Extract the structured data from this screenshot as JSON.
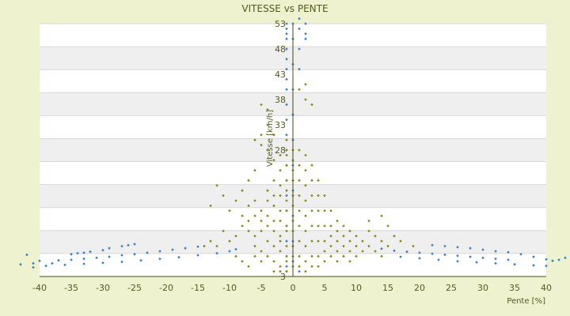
{
  "chart_data": {
    "type": "scatter",
    "title": "VITESSE vs PENTE",
    "xlabel": "Pente [%]",
    "ylabel": "Vitesse [km/h]",
    "xlim": [
      -40,
      40
    ],
    "ylim": [
      3,
      53
    ],
    "x_ticks": [
      "-40",
      "-35",
      "-30",
      "-25",
      "-20",
      "-15",
      "-10",
      "-5",
      "0",
      "5",
      "10",
      "15",
      "20",
      "25",
      "30",
      "35",
      "40"
    ],
    "y_ticks": [
      "53",
      "48",
      "43",
      "38",
      "33",
      "28",
      "3"
    ],
    "grid": true,
    "legend": "none",
    "colors": {
      "series_a": "#3a80c8",
      "series_b": "#8a8a1a",
      "band": "#efefef",
      "axis": "#4a4a14"
    },
    "series": [
      {
        "marker": "blue-diamond",
        "points": [
          [
            -43,
            5.4
          ],
          [
            -42,
            7.3
          ],
          [
            -41,
            4.8
          ],
          [
            -41,
            5.6
          ],
          [
            -40,
            6.1
          ],
          [
            -39,
            5.1
          ],
          [
            -38,
            5.6
          ],
          [
            -37,
            6.2
          ],
          [
            -35,
            7.4
          ],
          [
            -34,
            7.6
          ],
          [
            -33,
            7.7
          ],
          [
            -32,
            7.9
          ],
          [
            -30,
            8.2
          ],
          [
            -29,
            8.6
          ],
          [
            -27,
            9.0
          ],
          [
            -26,
            9.2
          ],
          [
            -25,
            9.4
          ],
          [
            -35,
            6.3
          ],
          [
            -33,
            6.5
          ],
          [
            -31,
            6.7
          ],
          [
            -29,
            6.9
          ],
          [
            -27,
            7.2
          ],
          [
            -25,
            7.4
          ],
          [
            -23,
            7.7
          ],
          [
            -21,
            8.0
          ],
          [
            -19,
            8.3
          ],
          [
            -17,
            8.6
          ],
          [
            -15,
            8.9
          ],
          [
            -36,
            5.3
          ],
          [
            -33,
            5.5
          ],
          [
            -30,
            5.7
          ],
          [
            -27,
            5.9
          ],
          [
            -24,
            6.2
          ],
          [
            -21,
            6.5
          ],
          [
            -18,
            6.8
          ],
          [
            -15,
            7.2
          ],
          [
            -12,
            7.6
          ],
          [
            -10,
            8.0
          ],
          [
            -9,
            8.4
          ],
          [
            -1,
            53
          ],
          [
            -1,
            52
          ],
          [
            -1,
            51
          ],
          [
            -1,
            50
          ],
          [
            -1,
            48
          ],
          [
            -1,
            46
          ],
          [
            -1,
            44
          ],
          [
            -1,
            42
          ],
          [
            -1,
            40
          ],
          [
            -1,
            37
          ],
          [
            -1,
            34
          ],
          [
            -1,
            31
          ],
          [
            -1,
            28
          ],
          [
            -1,
            25
          ],
          [
            -1,
            22
          ],
          [
            -1,
            19
          ],
          [
            -1,
            16
          ],
          [
            -1,
            13
          ],
          [
            -1,
            10
          ],
          [
            -1,
            7
          ],
          [
            -1,
            5
          ],
          [
            -1,
            4
          ],
          [
            0,
            53
          ],
          [
            0,
            50
          ],
          [
            0,
            45
          ],
          [
            0,
            40
          ],
          [
            0,
            35
          ],
          [
            0,
            30
          ],
          [
            0,
            25
          ],
          [
            0,
            20
          ],
          [
            0,
            15
          ],
          [
            0,
            10
          ],
          [
            0,
            6
          ],
          [
            1,
            54
          ],
          [
            1,
            52
          ],
          [
            1,
            48
          ],
          [
            1,
            44
          ],
          [
            1,
            4
          ],
          [
            2,
            53
          ],
          [
            2,
            51
          ],
          [
            2,
            50
          ],
          [
            14,
            8.5
          ],
          [
            16,
            8.1
          ],
          [
            18,
            7.9
          ],
          [
            20,
            7.7
          ],
          [
            22,
            7.5
          ],
          [
            24,
            7.3
          ],
          [
            26,
            7.1
          ],
          [
            28,
            6.9
          ],
          [
            30,
            6.7
          ],
          [
            32,
            6.5
          ],
          [
            34,
            6.3
          ],
          [
            17,
            6.9
          ],
          [
            20,
            6.6
          ],
          [
            23,
            6.3
          ],
          [
            26,
            6.0
          ],
          [
            29,
            5.8
          ],
          [
            32,
            5.6
          ],
          [
            35,
            5.4
          ],
          [
            38,
            5.2
          ],
          [
            40,
            5.1
          ],
          [
            22,
            9.2
          ],
          [
            24,
            9.0
          ],
          [
            26,
            8.8
          ],
          [
            28,
            8.6
          ],
          [
            30,
            8.3
          ],
          [
            32,
            8.0
          ],
          [
            34,
            7.8
          ],
          [
            36,
            7.4
          ],
          [
            38,
            6.9
          ],
          [
            40,
            6.4
          ],
          [
            41,
            6.1
          ],
          [
            42,
            6.3
          ],
          [
            43,
            6.7
          ]
        ]
      },
      {
        "marker": "olive-diamond",
        "points": [
          [
            -5,
            37
          ],
          [
            -4,
            36
          ],
          [
            -4,
            33
          ],
          [
            -5,
            31
          ],
          [
            -6,
            30
          ],
          [
            -5,
            29
          ],
          [
            -4,
            28
          ],
          [
            -3,
            31
          ],
          [
            -3,
            26
          ],
          [
            -2,
            27
          ],
          [
            -2,
            24
          ],
          [
            -1,
            28
          ],
          [
            -1,
            25
          ],
          [
            -1,
            22
          ],
          [
            -3,
            22
          ],
          [
            -4,
            20
          ],
          [
            -6,
            24
          ],
          [
            -7,
            22
          ],
          [
            -8,
            20
          ],
          [
            -9,
            18
          ],
          [
            -11,
            19
          ],
          [
            -13,
            17
          ],
          [
            -12,
            21
          ],
          [
            -10,
            16
          ],
          [
            -7,
            17
          ],
          [
            -6,
            18
          ],
          [
            -5,
            16
          ],
          [
            -4,
            15
          ],
          [
            -3,
            17
          ],
          [
            -2,
            19
          ],
          [
            -2,
            14
          ],
          [
            -1,
            16
          ],
          [
            -1,
            12
          ],
          [
            -2,
            11
          ],
          [
            -3,
            12
          ],
          [
            -4,
            13
          ],
          [
            -5,
            12
          ],
          [
            -6,
            11
          ],
          [
            -7,
            12
          ],
          [
            -8,
            13
          ],
          [
            -9,
            11
          ],
          [
            -10,
            10
          ],
          [
            -11,
            12
          ],
          [
            -12,
            9
          ],
          [
            -13,
            10
          ],
          [
            -14,
            9
          ],
          [
            -6,
            9
          ],
          [
            -5,
            8
          ],
          [
            -4,
            10
          ],
          [
            -3,
            9
          ],
          [
            -2,
            8
          ],
          [
            -1,
            9
          ],
          [
            -1,
            6
          ],
          [
            -2,
            5
          ],
          [
            -3,
            6
          ],
          [
            -4,
            7
          ],
          [
            -5,
            6
          ],
          [
            -6,
            7
          ],
          [
            -7,
            5
          ],
          [
            -8,
            6
          ],
          [
            -9,
            7
          ],
          [
            -3,
            4
          ],
          [
            -2,
            4
          ],
          [
            -1,
            4
          ],
          [
            -1,
            30
          ],
          [
            -1,
            27
          ],
          [
            -1,
            20
          ],
          [
            -1,
            18
          ],
          [
            -2,
            21
          ],
          [
            -3,
            19
          ],
          [
            -4,
            18
          ],
          [
            -2,
            16
          ],
          [
            -3,
            14
          ],
          [
            -5,
            14
          ],
          [
            -6,
            15
          ],
          [
            -7,
            14
          ],
          [
            -8,
            15
          ],
          [
            -1,
            13
          ],
          [
            -2,
            10
          ],
          [
            -1,
            7
          ],
          [
            0,
            28
          ],
          [
            0,
            26
          ],
          [
            0,
            24
          ],
          [
            0,
            22
          ],
          [
            0,
            19
          ],
          [
            0,
            17
          ],
          [
            0,
            14
          ],
          [
            0,
            12
          ],
          [
            0,
            9
          ],
          [
            0,
            7
          ],
          [
            0,
            5
          ],
          [
            1,
            28
          ],
          [
            1,
            25
          ],
          [
            1,
            22
          ],
          [
            1,
            19
          ],
          [
            1,
            16
          ],
          [
            1,
            13
          ],
          [
            1,
            10
          ],
          [
            1,
            7
          ],
          [
            1,
            5
          ],
          [
            2,
            27
          ],
          [
            2,
            24
          ],
          [
            2,
            21
          ],
          [
            2,
            18
          ],
          [
            2,
            15
          ],
          [
            2,
            12
          ],
          [
            2,
            9
          ],
          [
            2,
            6
          ],
          [
            2,
            4
          ],
          [
            3,
            25
          ],
          [
            3,
            22
          ],
          [
            3,
            19
          ],
          [
            3,
            16
          ],
          [
            3,
            13
          ],
          [
            3,
            10
          ],
          [
            3,
            7
          ],
          [
            3,
            5
          ],
          [
            4,
            22
          ],
          [
            4,
            19
          ],
          [
            4,
            16
          ],
          [
            4,
            13
          ],
          [
            4,
            10
          ],
          [
            4,
            7
          ],
          [
            4,
            5
          ],
          [
            5,
            19
          ],
          [
            5,
            16
          ],
          [
            5,
            13
          ],
          [
            5,
            10
          ],
          [
            5,
            8
          ],
          [
            5,
            6
          ],
          [
            6,
            16
          ],
          [
            6,
            13
          ],
          [
            6,
            11
          ],
          [
            6,
            9
          ],
          [
            6,
            7
          ],
          [
            7,
            14
          ],
          [
            7,
            12
          ],
          [
            7,
            10
          ],
          [
            7,
            8
          ],
          [
            7,
            6
          ],
          [
            8,
            13
          ],
          [
            8,
            11
          ],
          [
            8,
            9
          ],
          [
            8,
            7
          ],
          [
            9,
            12
          ],
          [
            9,
            10
          ],
          [
            9,
            8
          ],
          [
            9,
            6
          ],
          [
            10,
            11
          ],
          [
            10,
            9
          ],
          [
            10,
            7
          ],
          [
            11,
            10
          ],
          [
            11,
            8
          ],
          [
            12,
            14
          ],
          [
            12,
            12
          ],
          [
            12,
            9
          ],
          [
            13,
            11
          ],
          [
            13,
            8
          ],
          [
            14,
            15
          ],
          [
            14,
            10
          ],
          [
            14,
            7
          ],
          [
            15,
            13
          ],
          [
            15,
            9
          ],
          [
            16,
            11
          ],
          [
            17,
            10
          ],
          [
            19,
            9
          ],
          [
            1,
            40
          ],
          [
            2,
            41
          ],
          [
            2,
            38
          ],
          [
            3,
            37
          ]
        ]
      }
    ]
  }
}
